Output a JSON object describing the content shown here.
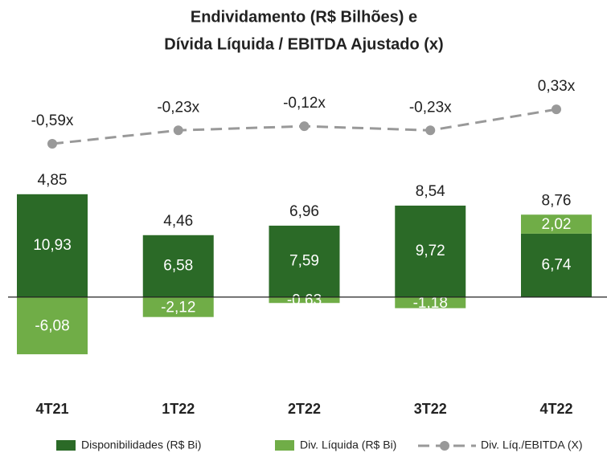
{
  "chart_data": {
    "type": "bar",
    "title": [
      "Endividamento (R$ Bilhões) e",
      "Dívida Líquida / EBITDA Ajustado (x)"
    ],
    "categories": [
      "4T21",
      "1T22",
      "2T22",
      "3T22",
      "4T22"
    ],
    "series": [
      {
        "name": "Disponibilidades (R$ Bi)",
        "color": "#2b6a27",
        "values": [
          10.93,
          6.58,
          7.59,
          9.72,
          6.74
        ],
        "value_labels": [
          "10,93",
          "6,58",
          "7,59",
          "9,72",
          "6,74"
        ]
      },
      {
        "name": "Div. Líquida (R$ Bi)",
        "color": "#70ad47",
        "values": [
          -6.08,
          -2.12,
          -0.63,
          -1.18,
          2.02
        ],
        "value_labels": [
          "-6,08",
          "-2,12",
          "-0,63",
          "-1,18",
          "2,02"
        ]
      },
      {
        "name": "Div. Líq./EBITDA (X)",
        "color": "#999999",
        "type": "line",
        "axis": "y2",
        "values": [
          -0.59,
          -0.23,
          -0.12,
          -0.23,
          0.33
        ],
        "value_labels": [
          "-0,59x",
          "-0,23x",
          "-0,12x",
          "-0,23x",
          "0,33x"
        ]
      }
    ],
    "totals": {
      "values": [
        4.85,
        4.46,
        6.96,
        8.54,
        8.76
      ],
      "value_labels": [
        "4,85",
        "4,46",
        "6,96",
        "8,54",
        "8,76"
      ]
    },
    "ylim": [
      -10,
      25
    ],
    "y2lim": [
      -7.2,
      1.6
    ],
    "legend": "bottom"
  }
}
